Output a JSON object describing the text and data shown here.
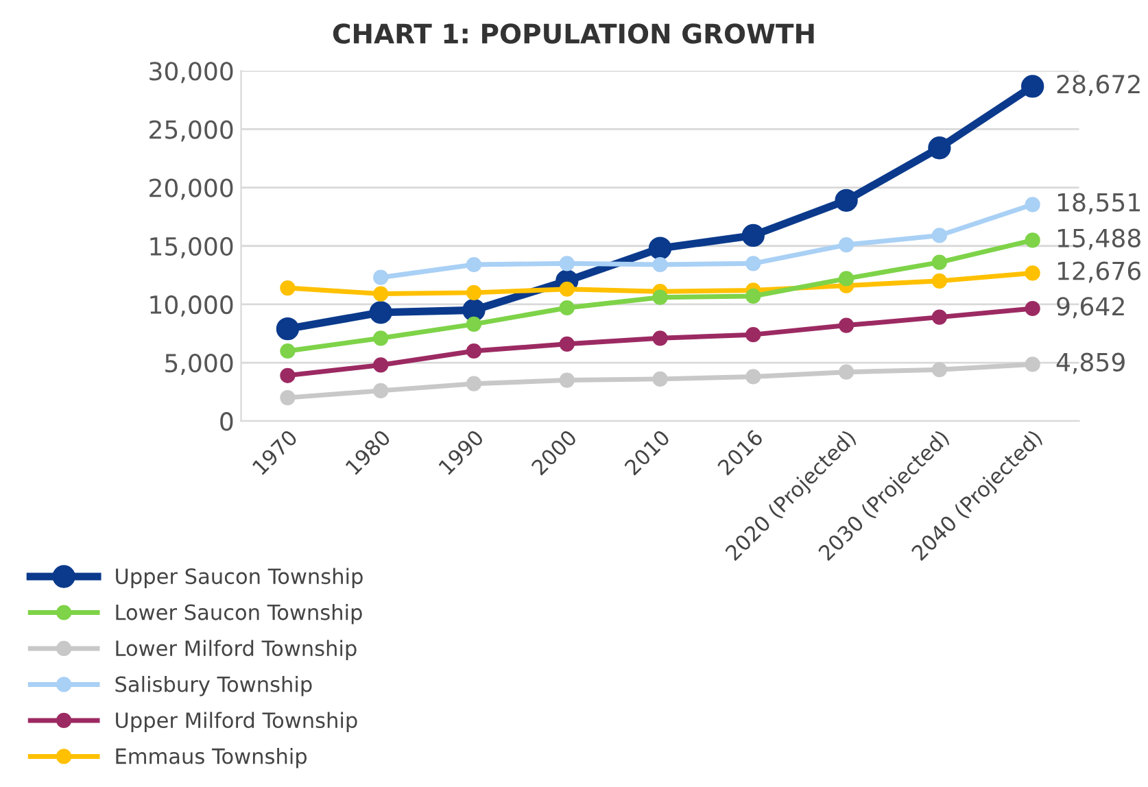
{
  "chart_data": {
    "type": "line",
    "title": "CHART 1: POPULATION GROWTH",
    "categories": [
      "1970",
      "1980",
      "1990",
      "2000",
      "2010",
      "2016",
      "2020 (Projected)",
      "2030 (Projected)",
      "2040 (Projected)"
    ],
    "series": [
      {
        "name": "Upper Saucon Township",
        "color": "#0b3a8c",
        "values": [
          7900,
          9300,
          9500,
          12000,
          14800,
          15900,
          18900,
          23400,
          28672
        ],
        "value_labels": [
          null,
          null,
          null,
          null,
          null,
          null,
          null,
          null,
          "28,672"
        ]
      },
      {
        "name": "Lower Saucon Township",
        "color": "#7ed348",
        "values": [
          6000,
          7100,
          8300,
          9700,
          10600,
          10700,
          12200,
          13600,
          15488
        ],
        "value_labels": [
          null,
          null,
          null,
          null,
          null,
          null,
          null,
          null,
          "15,488"
        ]
      },
      {
        "name": "Lower Milford Township",
        "color": "#c8c8c8",
        "values": [
          2000,
          2600,
          3200,
          3500,
          3600,
          3800,
          4200,
          4400,
          4859
        ],
        "value_labels": [
          null,
          null,
          null,
          null,
          null,
          null,
          null,
          null,
          "4,859"
        ]
      },
      {
        "name": "Salisbury Township",
        "color": "#a9d0f5",
        "values": [
          null,
          12300,
          13400,
          13500,
          13400,
          13500,
          15100,
          15900,
          18551
        ],
        "value_labels": [
          null,
          null,
          null,
          null,
          null,
          null,
          null,
          null,
          "18,551"
        ]
      },
      {
        "name": "Upper Milford Township",
        "color": "#9c2a62",
        "values": [
          3900,
          4800,
          6000,
          6600,
          7100,
          7400,
          8200,
          8900,
          9642
        ],
        "value_labels": [
          null,
          null,
          null,
          null,
          null,
          null,
          null,
          null,
          "9,642"
        ]
      },
      {
        "name": "Emmaus Township",
        "color": "#ffc000",
        "values": [
          11400,
          10900,
          11000,
          11300,
          11100,
          11200,
          11600,
          12000,
          12676
        ],
        "value_labels": [
          null,
          null,
          null,
          null,
          null,
          null,
          null,
          null,
          "12,676"
        ]
      }
    ],
    "ylim": [
      0,
      30000
    ],
    "yticks": [
      {
        "value": 0,
        "label": "0"
      },
      {
        "value": 5000,
        "label": "5,000"
      },
      {
        "value": 10000,
        "label": "10,000"
      },
      {
        "value": 15000,
        "label": "15,000"
      },
      {
        "value": 20000,
        "label": "20,000"
      },
      {
        "value": 25000,
        "label": "25,000"
      },
      {
        "value": 30000,
        "label": "30,000"
      }
    ],
    "grid": "y",
    "legend": "bottom left",
    "marker": "circle",
    "line_style": "solid"
  }
}
